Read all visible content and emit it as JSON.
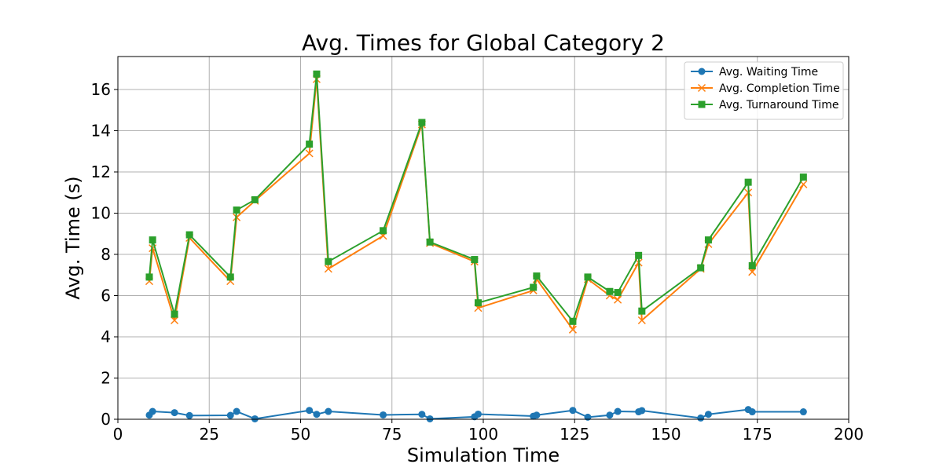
{
  "chart_data": {
    "type": "line",
    "title": "Avg. Times for Global Category 2",
    "xlabel": "Simulation Time",
    "ylabel": "Avg. Time (s)",
    "xlim": [
      0,
      200
    ],
    "ylim": [
      0,
      17.6
    ],
    "x_ticks": [
      0,
      25,
      50,
      75,
      100,
      125,
      150,
      175,
      200
    ],
    "y_ticks": [
      0,
      2,
      4,
      6,
      8,
      10,
      12,
      14,
      16
    ],
    "grid": true,
    "legend_position": "top-right",
    "x": [
      8.6,
      9.5,
      15.5,
      19.6,
      30.8,
      32.5,
      37.5,
      52.4,
      54.4,
      57.6,
      72.6,
      83.2,
      85.4,
      97.6,
      98.6,
      113.7,
      114.6,
      124.5,
      128.6,
      134.6,
      136.8,
      142.5,
      143.4,
      159.5,
      161.6,
      172.5,
      173.6,
      187.6
    ],
    "series": [
      {
        "name": "Avg. Waiting Time",
        "color": "#1f77b4",
        "marker": "circle",
        "values": [
          0.2,
          0.38,
          0.32,
          0.18,
          0.19,
          0.38,
          0.02,
          0.43,
          0.24,
          0.38,
          0.21,
          0.24,
          0.02,
          0.12,
          0.25,
          0.15,
          0.2,
          0.43,
          0.1,
          0.2,
          0.38,
          0.36,
          0.42,
          0.06,
          0.24,
          0.47,
          0.36,
          0.36
        ]
      },
      {
        "name": "Avg. Completion Time",
        "color": "#ff7f0e",
        "marker": "x",
        "values": [
          6.7,
          8.3,
          4.8,
          8.8,
          6.7,
          9.8,
          10.6,
          12.9,
          16.5,
          7.3,
          8.9,
          14.3,
          8.55,
          7.65,
          5.4,
          6.25,
          6.8,
          4.35,
          6.8,
          6.0,
          5.8,
          7.6,
          4.8,
          7.3,
          8.5,
          11.0,
          7.15,
          11.4
        ]
      },
      {
        "name": "Avg. Turnaround Time",
        "color": "#2ca02c",
        "marker": "square",
        "values": [
          6.9,
          8.7,
          5.1,
          8.95,
          6.9,
          10.15,
          10.65,
          13.35,
          16.75,
          7.65,
          9.15,
          14.4,
          8.6,
          7.75,
          5.65,
          6.4,
          6.95,
          4.75,
          6.9,
          6.2,
          6.15,
          7.95,
          5.25,
          7.35,
          8.7,
          11.5,
          7.45,
          11.75
        ]
      }
    ]
  }
}
